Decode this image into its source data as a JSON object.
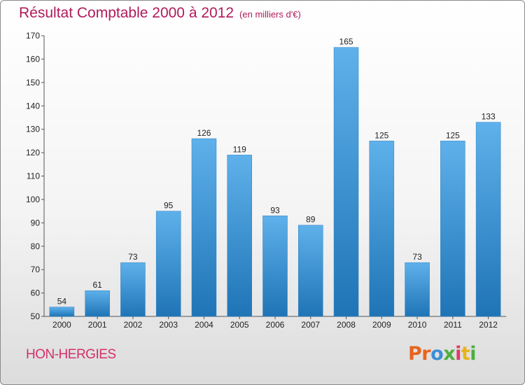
{
  "header": {
    "title": "Résultat Comptable 2000 à 2012",
    "unit": "(en milliers d'€)"
  },
  "commune": "HON-HERGIES",
  "logo": {
    "text": "Proxiti",
    "colors": [
      "#e8641c",
      "#e8641c",
      "#3a8fd6",
      "#4caf3e",
      "#e03a6a",
      "#e8b41c",
      "#4caf3e"
    ]
  },
  "chart_data": {
    "type": "bar",
    "title": "Résultat Comptable 2000 à 2012",
    "xlabel": "",
    "ylabel": "",
    "categories": [
      "2000",
      "2001",
      "2002",
      "2003",
      "2004",
      "2005",
      "2006",
      "2007",
      "2008",
      "2009",
      "2010",
      "2011",
      "2012"
    ],
    "values": [
      54,
      61,
      73,
      95,
      126,
      119,
      93,
      89,
      165,
      125,
      73,
      125,
      133
    ],
    "ylim": [
      50,
      170
    ],
    "yticks": [
      50,
      60,
      70,
      80,
      90,
      100,
      110,
      120,
      130,
      140,
      150,
      160,
      170
    ],
    "grid": false,
    "bar_color": "#3d92d6"
  }
}
